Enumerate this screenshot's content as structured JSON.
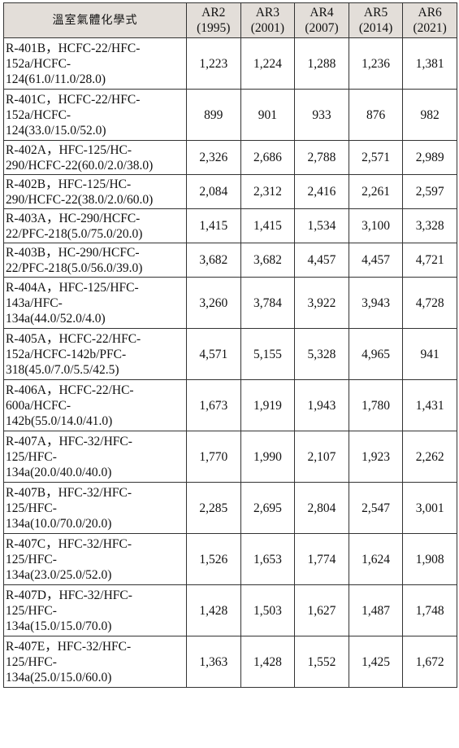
{
  "table": {
    "header": {
      "name": "溫室氣體化學式",
      "columns": [
        {
          "line1": "AR2",
          "line2": "(1995)"
        },
        {
          "line1": "AR3",
          "line2": "(2001)"
        },
        {
          "line1": "AR4",
          "line2": "(2007)"
        },
        {
          "line1": "AR5",
          "line2": "(2014)"
        },
        {
          "line1": "AR6",
          "line2": "(2021)"
        }
      ]
    },
    "rows": [
      {
        "name": [
          "R-401B，HCFC-22/HFC-",
          "152a/HCFC-",
          "124(61.0/11.0/28.0)"
        ],
        "values": [
          "1,223",
          "1,224",
          "1,288",
          "1,236",
          "1,381"
        ]
      },
      {
        "name": [
          "R-401C，HCFC-22/HFC-",
          "152a/HCFC-",
          "124(33.0/15.0/52.0)"
        ],
        "values": [
          "899",
          "901",
          "933",
          "876",
          "982"
        ]
      },
      {
        "name": [
          "R-402A，HFC-125/HC-",
          "290/HCFC-22(60.0/2.0/38.0)"
        ],
        "values": [
          "2,326",
          "2,686",
          "2,788",
          "2,571",
          "2,989"
        ]
      },
      {
        "name": [
          "R-402B，HFC-125/HC-",
          "290/HCFC-22(38.0/2.0/60.0)"
        ],
        "values": [
          "2,084",
          "2,312",
          "2,416",
          "2,261",
          "2,597"
        ]
      },
      {
        "name": [
          "R-403A，HC-290/HCFC-",
          "22/PFC-218(5.0/75.0/20.0)"
        ],
        "values": [
          "1,415",
          "1,415",
          "1,534",
          "3,100",
          "3,328"
        ]
      },
      {
        "name": [
          "R-403B，HC-290/HCFC-",
          "22/PFC-218(5.0/56.0/39.0)"
        ],
        "values": [
          "3,682",
          "3,682",
          "4,457",
          "4,457",
          "4,721"
        ]
      },
      {
        "name": [
          "R-404A，HFC-125/HFC-",
          "143a/HFC-",
          "134a(44.0/52.0/4.0)"
        ],
        "values": [
          "3,260",
          "3,784",
          "3,922",
          "3,943",
          "4,728"
        ]
      },
      {
        "name": [
          "R-405A，HCFC-22/HFC-",
          "152a/HCFC-142b/PFC-",
          "318(45.0/7.0/5.5/42.5)"
        ],
        "values": [
          "4,571",
          "5,155",
          "5,328",
          "4,965",
          "941"
        ]
      },
      {
        "name": [
          "R-406A，HCFC-22/HC-",
          "600a/HCFC-",
          "142b(55.0/14.0/41.0)"
        ],
        "values": [
          "1,673",
          "1,919",
          "1,943",
          "1,780",
          "1,431"
        ]
      },
      {
        "name": [
          "R-407A，HFC-32/HFC-",
          "125/HFC-",
          "134a(20.0/40.0/40.0)"
        ],
        "values": [
          "1,770",
          "1,990",
          "2,107",
          "1,923",
          "2,262"
        ]
      },
      {
        "name": [
          "R-407B，HFC-32/HFC-",
          "125/HFC-",
          "134a(10.0/70.0/20.0)"
        ],
        "values": [
          "2,285",
          "2,695",
          "2,804",
          "2,547",
          "3,001"
        ]
      },
      {
        "name": [
          "R-407C，HFC-32/HFC-",
          "125/HFC-",
          "134a(23.0/25.0/52.0)"
        ],
        "values": [
          "1,526",
          "1,653",
          "1,774",
          "1,624",
          "1,908"
        ]
      },
      {
        "name": [
          "R-407D，HFC-32/HFC-",
          "125/HFC-",
          "134a(15.0/15.0/70.0)"
        ],
        "values": [
          "1,428",
          "1,503",
          "1,627",
          "1,487",
          "1,748"
        ]
      },
      {
        "name": [
          "R-407E，HFC-32/HFC-",
          "125/HFC-",
          "134a(25.0/15.0/60.0)"
        ],
        "values": [
          "1,363",
          "1,428",
          "1,552",
          "1,425",
          "1,672"
        ]
      }
    ]
  }
}
